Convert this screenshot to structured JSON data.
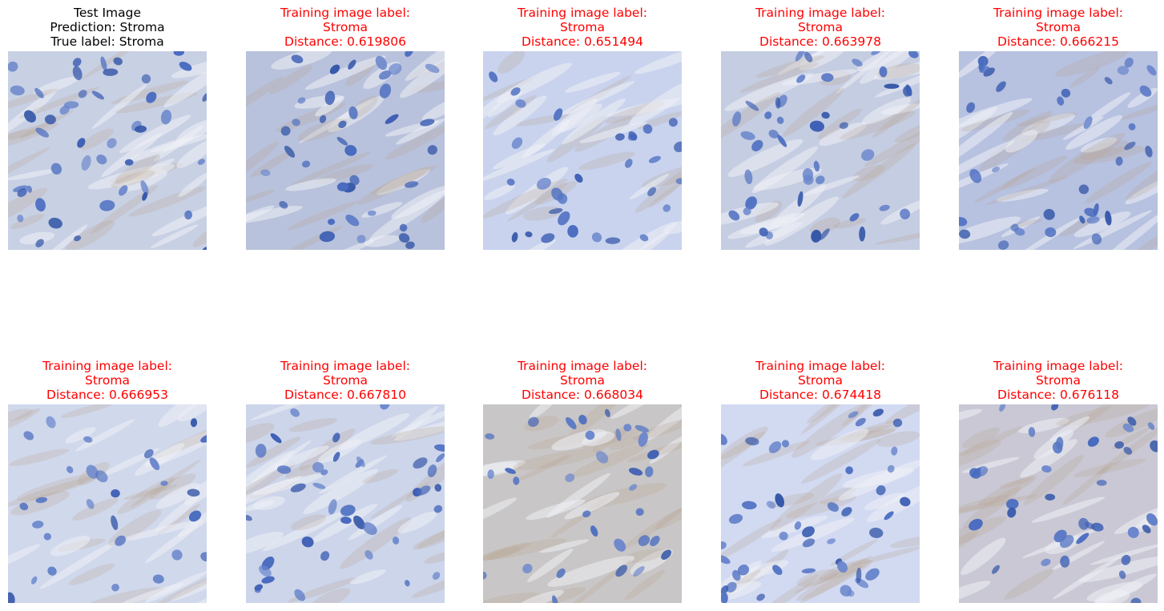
{
  "test_panel": {
    "line1": "Test Image",
    "line2": "Prediction: Stroma",
    "line3": "True label: Stroma",
    "color": "#000000",
    "tint": "#c8d0e4"
  },
  "neighbors": [
    {
      "line1": "Training image label:",
      "line2": "Stroma",
      "line3": "Distance: 0.619806",
      "tint": "#b9c2dc"
    },
    {
      "line1": "Training image label:",
      "line2": "Stroma",
      "line3": "Distance: 0.651494",
      "tint": "#c9d3ee"
    },
    {
      "line1": "Training image label:",
      "line2": "Stroma",
      "line3": "Distance: 0.663978",
      "tint": "#c5cde2"
    },
    {
      "line1": "Training image label:",
      "line2": "Stroma",
      "line3": "Distance: 0.666215",
      "tint": "#b7c1e0"
    },
    {
      "line1": "Training image label:",
      "line2": "Stroma",
      "line3": "Distance: 0.666953",
      "tint": "#d0d8ec"
    },
    {
      "line1": "Training image label:",
      "line2": "Stroma",
      "line3": "Distance: 0.667810",
      "tint": "#cdd5ea"
    },
    {
      "line1": "Training image label:",
      "line2": "Stroma",
      "line3": "Distance: 0.668034",
      "tint": "#c8c6c6"
    },
    {
      "line1": "Training image label:",
      "line2": "Stroma",
      "line3": "Distance: 0.674418",
      "tint": "#d2daf2"
    },
    {
      "line1": "Training image label:",
      "line2": "Stroma",
      "line3": "Distance: 0.676118",
      "tint": "#c9c8d4"
    }
  ],
  "neighbor_color": "#ff0000"
}
